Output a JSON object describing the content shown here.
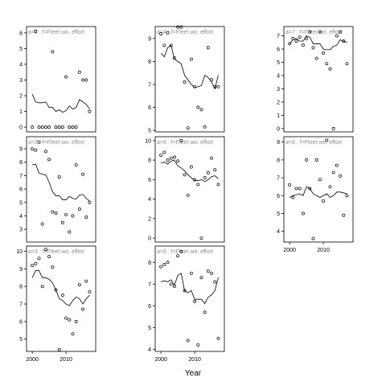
{
  "x_label": "Year",
  "chart_data": [
    {
      "type": "scatter",
      "title": "a=1 : f=Fleet wo. effort",
      "x": [
        2000,
        2001,
        2002,
        2003,
        2004,
        2005,
        2006,
        2007,
        2008,
        2009,
        2010,
        2011,
        2012,
        2013,
        2014,
        2015,
        2016,
        2017
      ],
      "series": [
        {
          "style": "points",
          "color": "#000000",
          "values": [
            0,
            6.1,
            0,
            0,
            0,
            0,
            4.8,
            0,
            0,
            0,
            3.2,
            0,
            0,
            0,
            3.5,
            3.0,
            3.0,
            1.0
          ]
        },
        {
          "style": "line",
          "color": "#000000",
          "values": [
            2.1,
            1.6,
            1.55,
            1.55,
            1.6,
            1.25,
            1.25,
            1.0,
            1.1,
            0.95,
            1.05,
            1.35,
            1.15,
            1.25,
            1.75,
            1.6,
            1.45,
            1.15
          ]
        }
      ],
      "xlim": [
        1998.3,
        2018.8
      ],
      "ylim": [
        -0.3,
        6.4
      ],
      "yticks": [
        0,
        1,
        2,
        3,
        4,
        5,
        6
      ]
    },
    {
      "type": "scatter",
      "title": "a=2 : f=Fleet wo. effort",
      "x": [
        2000,
        2001,
        2002,
        2003,
        2004,
        2005,
        2006,
        2007,
        2008,
        2009,
        2010,
        2011,
        2012,
        2013,
        2014,
        2015,
        2016,
        2017
      ],
      "series": [
        {
          "style": "points",
          "color": "#000000",
          "values": [
            9.0,
            8.9,
            9.5,
            3.4,
            8.8,
            8.2,
            4.3,
            4.2,
            6.9,
            3.5,
            4.1,
            2.8,
            4.0,
            7.8,
            4.5,
            7.1,
            3.9,
            5.0
          ]
        },
        {
          "style": "line",
          "color": "#000000",
          "values": [
            7.8,
            7.85,
            7.2,
            7.1,
            7.05,
            6.5,
            5.8,
            5.5,
            5.5,
            5.2,
            5.2,
            5.45,
            5.3,
            5.25,
            5.55,
            5.6,
            5.3,
            5.1
          ]
        }
      ],
      "xlim": [
        1998.3,
        2018.8
      ],
      "ylim": [
        2.05,
        9.9
      ],
      "yticks": [
        3,
        4,
        5,
        6,
        7,
        8,
        9
      ]
    },
    {
      "type": "scatter",
      "title": "a=3 : f=Fleet wo. effort",
      "x": [
        2000,
        2001,
        2002,
        2003,
        2004,
        2005,
        2006,
        2007,
        2008,
        2009,
        2010,
        2011,
        2012,
        2013,
        2014,
        2015,
        2016,
        2017
      ],
      "series": [
        {
          "style": "points",
          "color": "#000000",
          "values": [
            9.2,
            9.3,
            9.6,
            8.0,
            10.1,
            9.7,
            9.1,
            7.8,
            4.4,
            7.5,
            6.2,
            6.1,
            5.3,
            6.0,
            8.1,
            6.7,
            8.3,
            7.7
          ]
        },
        {
          "style": "line",
          "color": "#000000",
          "values": [
            8.5,
            8.9,
            8.9,
            8.5,
            8.5,
            8.4,
            8.2,
            7.8,
            7.3,
            7.2,
            7.0,
            6.9,
            7.2,
            7.4,
            7.3,
            7.0,
            7.3,
            7.5
          ]
        }
      ],
      "xlim": [
        1998.3,
        2018.8
      ],
      "ylim": [
        4.3,
        10.3
      ],
      "yticks": [
        5,
        6,
        7,
        8,
        9,
        10
      ],
      "xticks": [
        2000,
        2010
      ]
    },
    {
      "type": "scatter",
      "title": "a=4 : f=Fleet wo. effort",
      "x": [
        2000,
        2001,
        2002,
        2003,
        2004,
        2005,
        2006,
        2007,
        2008,
        2009,
        2010,
        2011,
        2012,
        2013,
        2014,
        2015,
        2016,
        2017
      ],
      "series": [
        {
          "style": "points",
          "color": "#000000",
          "values": [
            9.2,
            8.7,
            9.25,
            8.7,
            8.15,
            9.5,
            9.5,
            7.1,
            5.1,
            8.1,
            6.9,
            6.0,
            5.9,
            5.15,
            8.6,
            7.2,
            6.9,
            6.9
          ]
        },
        {
          "style": "line",
          "color": "#000000",
          "values": [
            8.35,
            8.2,
            8.6,
            8.7,
            8.1,
            8.0,
            7.9,
            7.4,
            7.2,
            7.0,
            6.85,
            6.9,
            6.95,
            7.4,
            7.3,
            7.1,
            6.8,
            7.4
          ]
        }
      ],
      "xlim": [
        1998.3,
        2018.8
      ],
      "ylim": [
        4.93,
        9.52
      ],
      "yticks": [
        5,
        6,
        7,
        8,
        9
      ]
    },
    {
      "type": "scatter",
      "title": "a=5 : f=Fleet wo. effort",
      "x": [
        2000,
        2001,
        2002,
        2003,
        2004,
        2005,
        2006,
        2007,
        2008,
        2009,
        2010,
        2011,
        2012,
        2013,
        2014,
        2015,
        2016,
        2017
      ],
      "series": [
        {
          "style": "points",
          "color": "#000000",
          "values": [
            8.5,
            8.8,
            8.0,
            8.2,
            8.3,
            7.9,
            10.0,
            6.5,
            4.4,
            7.3,
            6.0,
            5.5,
            0.0,
            6.2,
            6.7,
            8.2,
            7.0,
            5.5
          ]
        },
        {
          "style": "line",
          "color": "#000000",
          "values": [
            7.7,
            7.8,
            7.6,
            7.9,
            8.0,
            7.4,
            7.2,
            6.9,
            6.5,
            6.2,
            5.9,
            5.9,
            6.0,
            5.8,
            6.0,
            6.3,
            6.4,
            6.1
          ]
        }
      ],
      "xlim": [
        1998.3,
        2018.8
      ],
      "ylim": [
        -0.4,
        10.4
      ],
      "yticks": [
        0,
        2,
        4,
        6,
        8,
        10
      ]
    },
    {
      "type": "scatter",
      "title": "a=6 : f=Fleet wo. effort",
      "x": [
        2000,
        2001,
        2002,
        2003,
        2004,
        2005,
        2006,
        2007,
        2008,
        2009,
        2010,
        2011,
        2012,
        2013,
        2014,
        2015,
        2016,
        2017
      ],
      "series": [
        {
          "style": "points",
          "color": "#000000",
          "values": [
            7.8,
            7.9,
            8.0,
            7.0,
            6.9,
            8.3,
            8.5,
            6.7,
            4.4,
            7.5,
            6.2,
            4.2,
            7.3,
            5.7,
            7.6,
            7.5,
            7.1,
            4.5
          ]
        },
        {
          "style": "line",
          "color": "#000000",
          "values": [
            7.1,
            7.15,
            7.1,
            7.2,
            6.95,
            7.4,
            7.5,
            6.7,
            6.6,
            6.7,
            6.3,
            6.3,
            6.3,
            6.1,
            6.4,
            6.5,
            6.7,
            7.3
          ]
        }
      ],
      "xlim": [
        1998.3,
        2018.8
      ],
      "ylim": [
        3.9,
        8.75
      ],
      "yticks": [
        4,
        5,
        6,
        7,
        8
      ],
      "xticks": [
        2000,
        2010
      ]
    },
    {
      "type": "scatter",
      "title": "a=7 : f=Fleet wo. effort",
      "x": [
        2000,
        2001,
        2002,
        2003,
        2004,
        2005,
        2006,
        2007,
        2008,
        2009,
        2010,
        2011,
        2012,
        2013,
        2014,
        2015,
        2016,
        2017
      ],
      "series": [
        {
          "style": "points",
          "color": "#000000",
          "values": [
            6.4,
            6.8,
            6.6,
            6.9,
            6.3,
            6.8,
            7.3,
            6.1,
            5.3,
            7.3,
            5.7,
            4.9,
            4.5,
            0,
            7.0,
            7.3,
            6.6,
            4.9
          ]
        },
        {
          "style": "line",
          "color": "#000000",
          "values": [
            6.4,
            6.7,
            6.8,
            6.6,
            6.6,
            7.0,
            6.9,
            6.4,
            6.4,
            6.4,
            6.0,
            5.95,
            5.95,
            6.2,
            6.3,
            6.7,
            6.6,
            6.5
          ]
        }
      ],
      "xlim": [
        1998.3,
        2018.8
      ],
      "ylim": [
        -0.25,
        7.7
      ],
      "yticks": [
        0,
        1,
        2,
        3,
        4,
        5,
        6,
        7
      ]
    },
    {
      "type": "scatter",
      "title": "a=8 : f=Fleet wo. effort",
      "x": [
        2000,
        2001,
        2002,
        2003,
        2004,
        2005,
        2006,
        2007,
        2008,
        2009,
        2010,
        2011,
        2012,
        2013,
        2014,
        2015,
        2016,
        2017
      ],
      "series": [
        {
          "style": "points",
          "color": "#000000",
          "values": [
            6.6,
            5.9,
            6.4,
            6.4,
            5.0,
            8.0,
            6.4,
            3.6,
            8.0,
            6.9,
            5.7,
            9.1,
            6.5,
            7.3,
            7.7,
            7.1,
            4.9,
            6.0
          ]
        },
        {
          "style": "line",
          "color": "#000000",
          "values": [
            5.9,
            6.0,
            6.05,
            6.1,
            6.0,
            6.5,
            6.4,
            6.1,
            6.0,
            5.9,
            6.0,
            6.1,
            5.9,
            6.0,
            6.2,
            6.2,
            6.15,
            6.1
          ]
        }
      ],
      "xlim": [
        1998.3,
        2018.8
      ],
      "ylim": [
        3.4,
        9.3
      ],
      "yticks": [
        4,
        5,
        6,
        7,
        8,
        9
      ],
      "xticks": [
        2000,
        2010
      ]
    }
  ]
}
